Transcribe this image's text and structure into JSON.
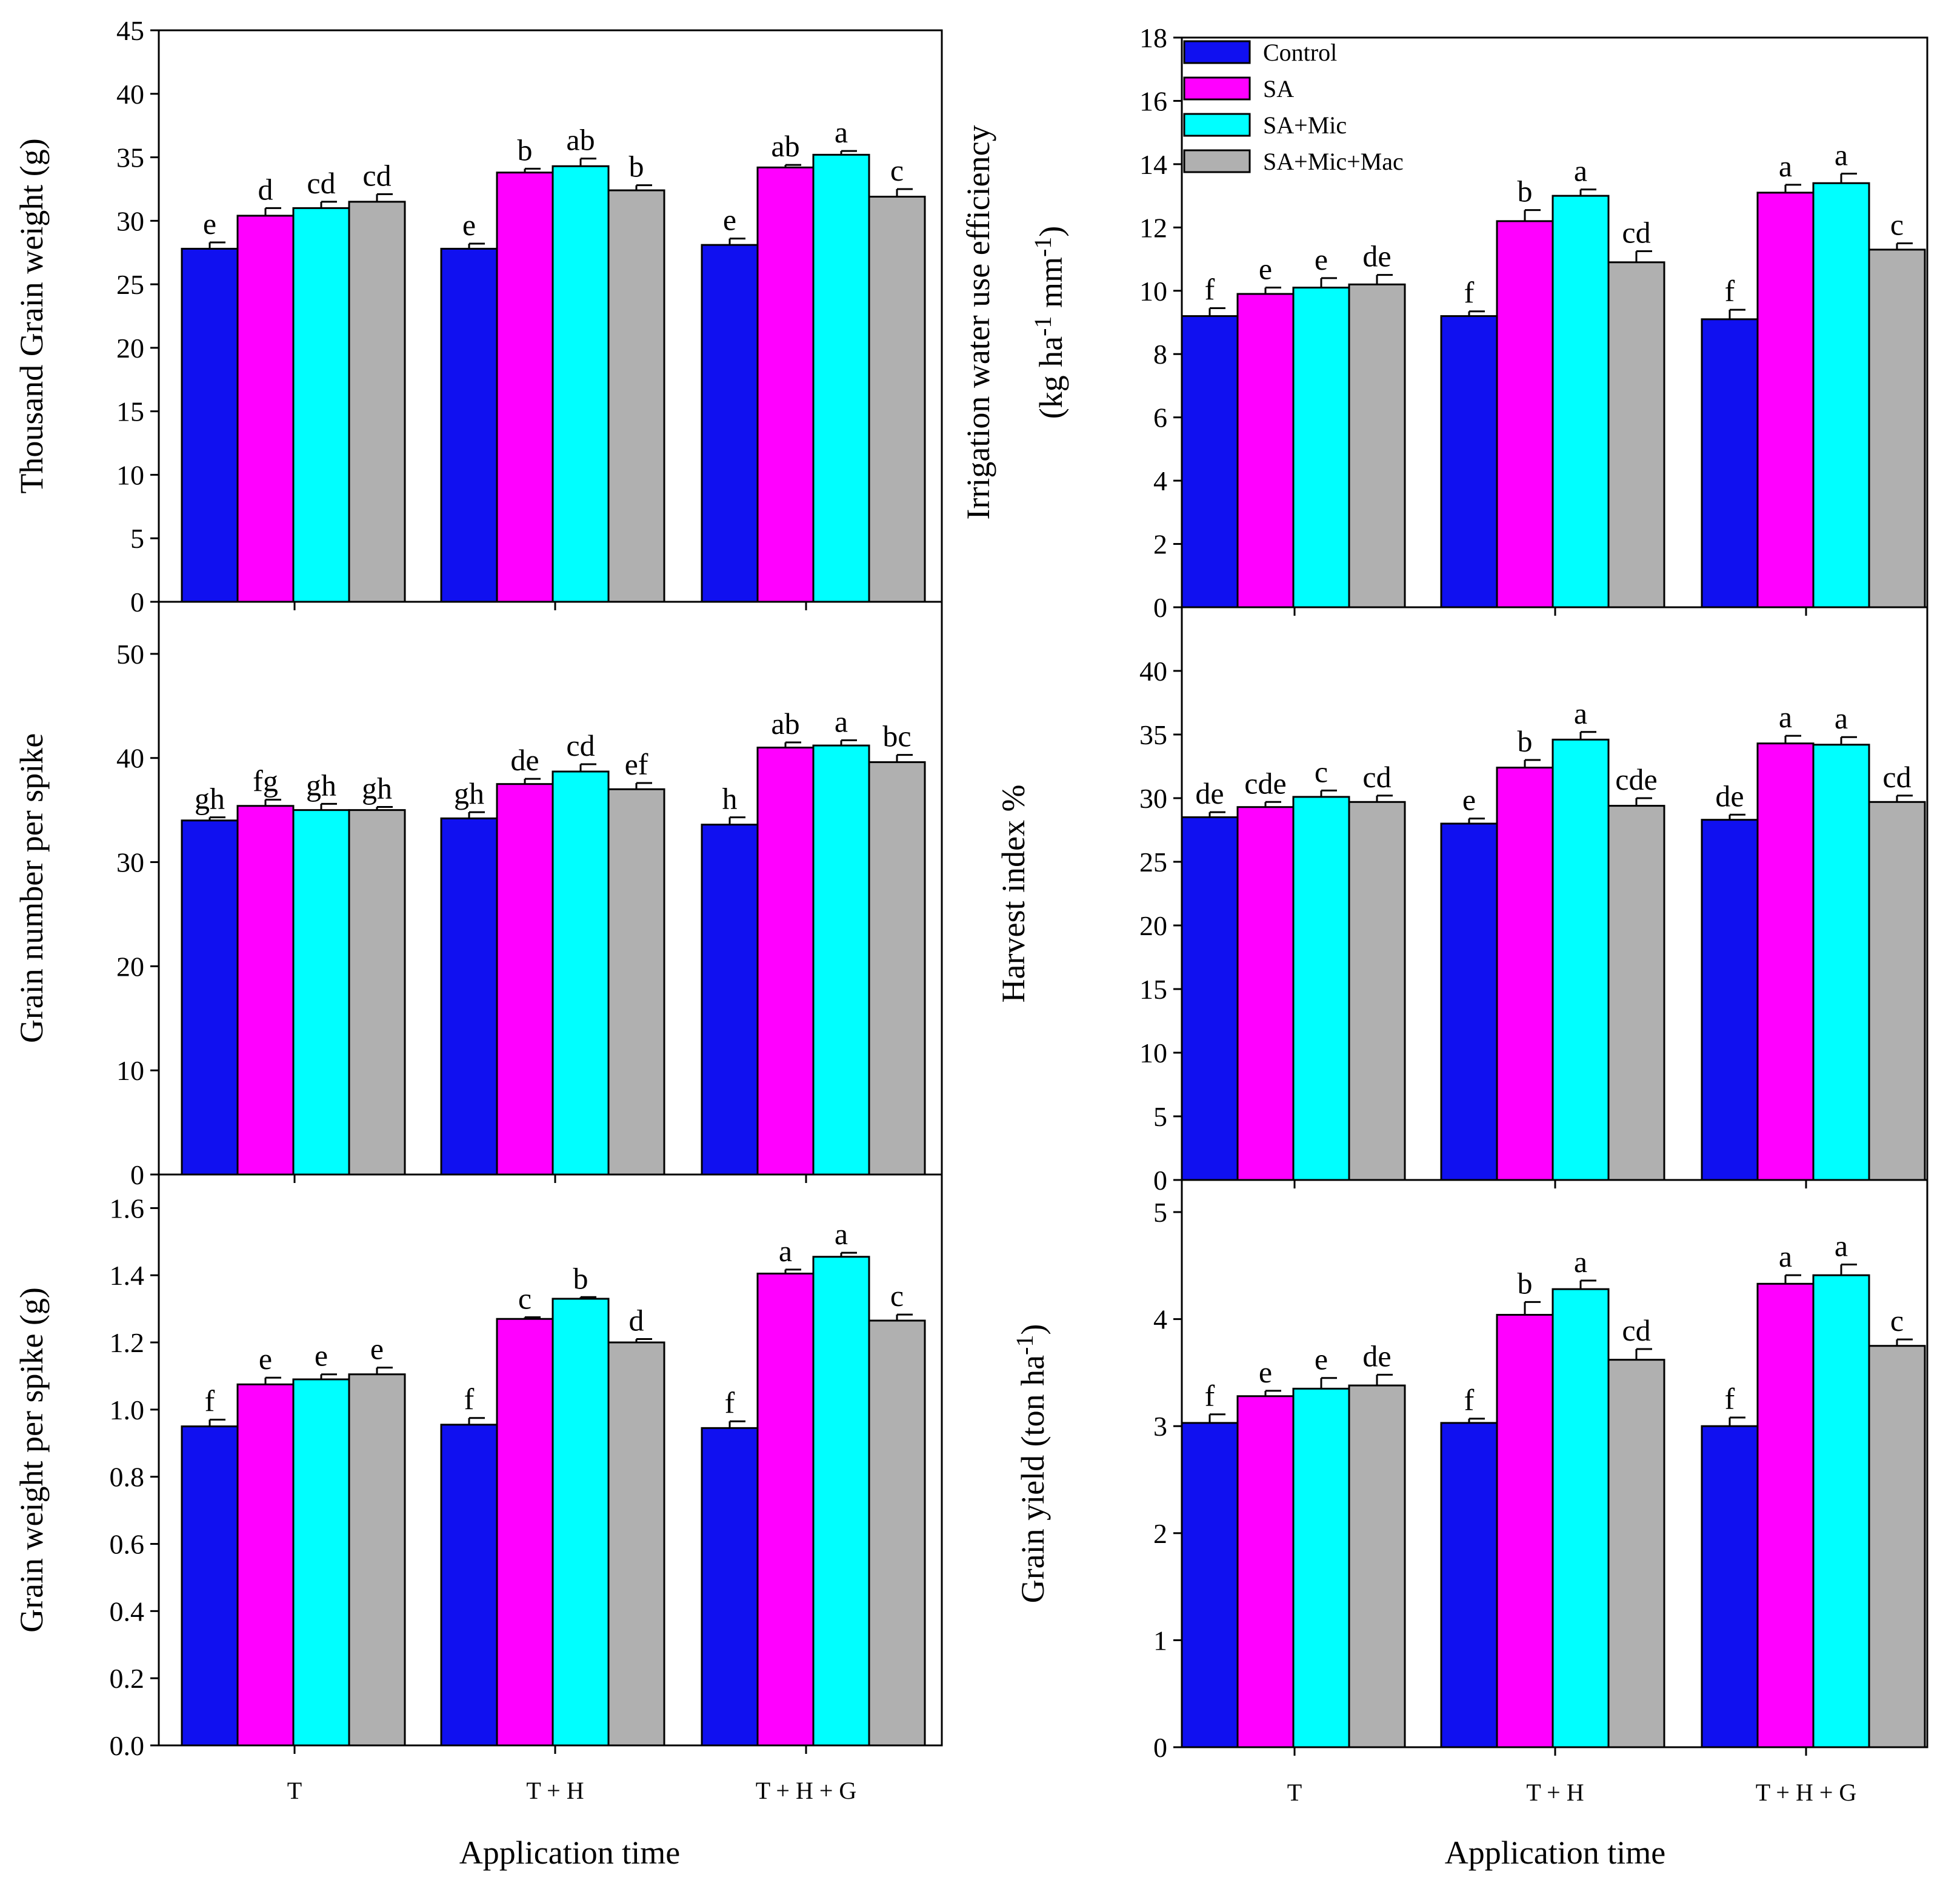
{
  "colors": {
    "Control": "#1010f0",
    "SA": "#ff00ff",
    "SA+Mic": "#00ffff",
    "SA+Mic+Mac": "#b0b0b0",
    "frame": "#000000"
  },
  "legend": {
    "placement": "top-left",
    "items": [
      "Control",
      "SA",
      "SA+Mic",
      "SA+Mic+Mac"
    ]
  },
  "xaxis_title_left": "Application time",
  "xaxis_title_right": "Application time",
  "chart_data": [
    {
      "type": "bar",
      "ylabel": "Thousand Grain weight (g)",
      "ylim": [
        0,
        45
      ],
      "yticks": [
        "0",
        "5",
        "10",
        "15",
        "20",
        "25",
        "30",
        "35",
        "40",
        "45"
      ],
      "categories": [
        "T",
        "T + H",
        "T + H + G"
      ],
      "series": [
        {
          "name": "Control",
          "values": [
            27.8,
            27.8,
            28.1
          ],
          "errors": [
            0.5,
            0.4,
            0.5
          ],
          "letters": [
            "e",
            "e",
            "e"
          ]
        },
        {
          "name": "SA",
          "values": [
            30.4,
            33.8,
            34.2
          ],
          "errors": [
            0.6,
            0.3,
            0.2
          ],
          "letters": [
            "d",
            "b",
            "ab"
          ]
        },
        {
          "name": "SA+Mic",
          "values": [
            31.0,
            34.3,
            35.2
          ],
          "errors": [
            0.5,
            0.6,
            0.3
          ],
          "letters": [
            "cd",
            "ab",
            "a"
          ]
        },
        {
          "name": "SA+Mic+Mac",
          "values": [
            31.5,
            32.4,
            31.9
          ],
          "errors": [
            0.6,
            0.4,
            0.6
          ],
          "letters": [
            "cd",
            "b",
            "c"
          ]
        }
      ]
    },
    {
      "type": "bar",
      "ylabel": "Irrigation water use efficiency",
      "ylabel2": "(kg ha",
      "ylabel2_sup1": "-1",
      "ylabel2_mid": " mm",
      "ylabel2_sup2": "-1",
      "ylabel2_end": ")",
      "ylim": [
        0,
        18
      ],
      "yticks": [
        "0",
        "2",
        "4",
        "6",
        "8",
        "10",
        "12",
        "14",
        "16",
        "18"
      ],
      "categories": [
        "T",
        "T + H",
        "T + H + G"
      ],
      "series": [
        {
          "name": "Control",
          "values": [
            9.2,
            9.2,
            9.1
          ],
          "errors": [
            0.25,
            0.15,
            0.3
          ],
          "letters": [
            "f",
            "f",
            "f"
          ]
        },
        {
          "name": "SA",
          "values": [
            9.9,
            12.2,
            13.1
          ],
          "errors": [
            0.2,
            0.35,
            0.25
          ],
          "letters": [
            "e",
            "b",
            "a"
          ]
        },
        {
          "name": "SA+Mic",
          "values": [
            10.1,
            13.0,
            13.4
          ],
          "errors": [
            0.3,
            0.2,
            0.3
          ],
          "letters": [
            "e",
            "a",
            "a"
          ]
        },
        {
          "name": "SA+Mic+Mac",
          "values": [
            10.2,
            10.9,
            11.3
          ],
          "errors": [
            0.3,
            0.35,
            0.2
          ],
          "letters": [
            "de",
            "cd",
            "c"
          ]
        }
      ]
    },
    {
      "type": "bar",
      "ylabel": "Grain number per spike",
      "ylim": [
        0,
        55
      ],
      "yticks": [
        "0",
        "10",
        "20",
        "30",
        "40",
        "50"
      ],
      "categories": [
        "T",
        "T + H",
        "T + H + G"
      ],
      "series": [
        {
          "name": "Control",
          "values": [
            34.0,
            34.2,
            33.6
          ],
          "errors": [
            0.3,
            0.6,
            0.7
          ],
          "letters": [
            "gh",
            "gh",
            "h"
          ]
        },
        {
          "name": "SA",
          "values": [
            35.4,
            37.5,
            41.0
          ],
          "errors": [
            0.6,
            0.5,
            0.5
          ],
          "letters": [
            "fg",
            "de",
            "ab"
          ]
        },
        {
          "name": "SA+Mic",
          "values": [
            35.0,
            38.7,
            41.2
          ],
          "errors": [
            0.6,
            0.7,
            0.5
          ],
          "letters": [
            "gh",
            "cd",
            "a"
          ]
        },
        {
          "name": "SA+Mic+Mac",
          "values": [
            35.0,
            37.0,
            39.6
          ],
          "errors": [
            0.3,
            0.6,
            0.7
          ],
          "letters": [
            "gh",
            "ef",
            "bc"
          ]
        }
      ]
    },
    {
      "type": "bar",
      "ylabel": "Harvest index %",
      "ylim": [
        0,
        45
      ],
      "yticks": [
        "0",
        "5",
        "10",
        "15",
        "20",
        "25",
        "30",
        "35",
        "40"
      ],
      "categories": [
        "T",
        "T + H",
        "T + H + G"
      ],
      "series": [
        {
          "name": "Control",
          "values": [
            28.5,
            28.0,
            28.3
          ],
          "errors": [
            0.4,
            0.4,
            0.4
          ],
          "letters": [
            "de",
            "e",
            "de"
          ]
        },
        {
          "name": "SA",
          "values": [
            29.3,
            32.4,
            34.3
          ],
          "errors": [
            0.4,
            0.6,
            0.6
          ],
          "letters": [
            "cde",
            "b",
            "a"
          ]
        },
        {
          "name": "SA+Mic",
          "values": [
            30.1,
            34.6,
            34.2
          ],
          "errors": [
            0.5,
            0.6,
            0.6
          ],
          "letters": [
            "c",
            "a",
            "a"
          ]
        },
        {
          "name": "SA+Mic+Mac",
          "values": [
            29.7,
            29.4,
            29.7
          ],
          "errors": [
            0.5,
            0.6,
            0.5
          ],
          "letters": [
            "cd",
            "cde",
            "cd"
          ]
        }
      ]
    },
    {
      "type": "bar",
      "ylabel": "Grain weight per spike (g)",
      "ylim": [
        0,
        1.7
      ],
      "yticks": [
        "0.0",
        "0.2",
        "0.4",
        "0.6",
        "0.8",
        "1.0",
        "1.2",
        "1.4",
        "1.6"
      ],
      "categories": [
        "T",
        "T + H",
        "T + H + G"
      ],
      "series": [
        {
          "name": "Control",
          "values": [
            0.95,
            0.955,
            0.945
          ],
          "errors": [
            0.02,
            0.02,
            0.02
          ],
          "letters": [
            "f",
            "f",
            "f"
          ]
        },
        {
          "name": "SA",
          "values": [
            1.075,
            1.27,
            1.405
          ],
          "errors": [
            0.02,
            0.005,
            0.012
          ],
          "letters": [
            "e",
            "c",
            "a"
          ]
        },
        {
          "name": "SA+Mic",
          "values": [
            1.09,
            1.33,
            1.455
          ],
          "errors": [
            0.015,
            0.005,
            0.012
          ],
          "letters": [
            "e",
            "b",
            "a"
          ]
        },
        {
          "name": "SA+Mic+Mac",
          "values": [
            1.105,
            1.2,
            1.265
          ],
          "errors": [
            0.02,
            0.01,
            0.018
          ],
          "letters": [
            "e",
            "d",
            "c"
          ]
        }
      ]
    },
    {
      "type": "bar",
      "ylabel": "Grain yield (ton ha",
      "ylabel_sup": "-1",
      "ylabel_end": ")",
      "ylim": [
        0,
        5.3
      ],
      "yticks": [
        "0",
        "1",
        "2",
        "3",
        "4",
        "5"
      ],
      "categories": [
        "T",
        "T + H",
        "T + H + G"
      ],
      "series": [
        {
          "name": "Control",
          "values": [
            3.03,
            3.03,
            3.0
          ],
          "errors": [
            0.08,
            0.04,
            0.08
          ],
          "letters": [
            "f",
            "f",
            "f"
          ]
        },
        {
          "name": "SA",
          "values": [
            3.28,
            4.04,
            4.33
          ],
          "errors": [
            0.05,
            0.12,
            0.08
          ],
          "letters": [
            "e",
            "b",
            "a"
          ]
        },
        {
          "name": "SA+Mic",
          "values": [
            3.35,
            4.28,
            4.41
          ],
          "errors": [
            0.1,
            0.08,
            0.1
          ],
          "letters": [
            "e",
            "a",
            "a"
          ]
        },
        {
          "name": "SA+Mic+Mac",
          "values": [
            3.38,
            3.62,
            3.75
          ],
          "errors": [
            0.1,
            0.1,
            0.06
          ],
          "letters": [
            "de",
            "cd",
            "c"
          ]
        }
      ]
    }
  ]
}
